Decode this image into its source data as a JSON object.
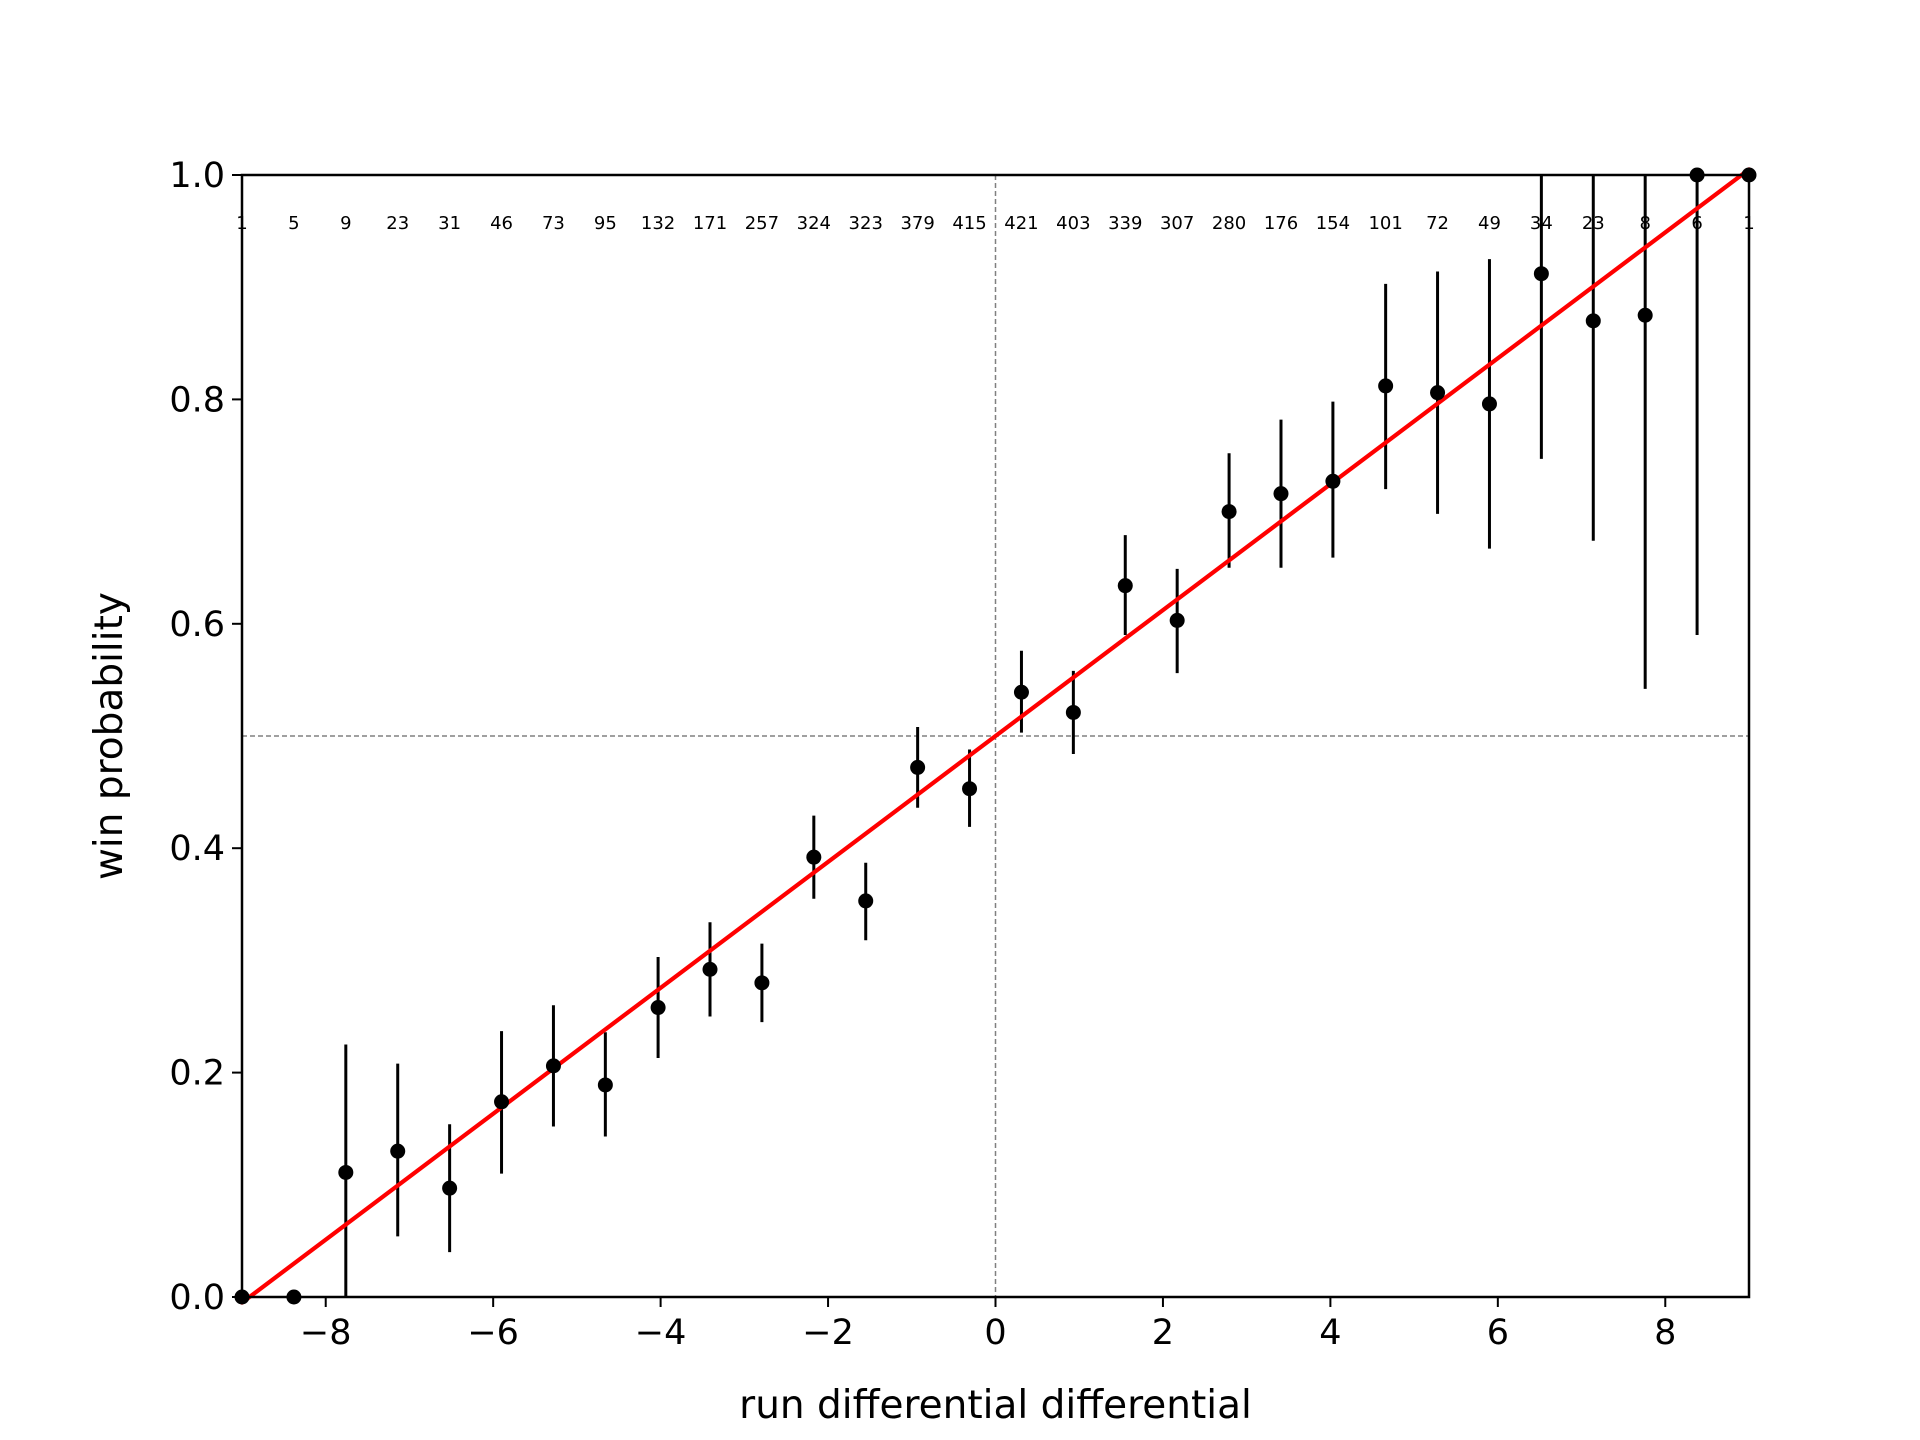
{
  "chart_data": {
    "type": "scatter",
    "xlabel": "run differential differential",
    "ylabel": "win probability",
    "xlim": [
      -9,
      9
    ],
    "ylim": [
      0,
      1
    ],
    "xticks": [
      -8,
      -6,
      -4,
      -2,
      0,
      2,
      4,
      6,
      8
    ],
    "xtick_labels": [
      "−8",
      "−6",
      "−4",
      "−2",
      "0",
      "2",
      "4",
      "6",
      "8"
    ],
    "yticks": [
      0,
      0.2,
      0.4,
      0.6,
      0.8,
      1.0
    ],
    "ytick_labels": [
      "0.0",
      "0.2",
      "0.4",
      "0.6",
      "0.8",
      "1.0"
    ],
    "grid": false,
    "reference_lines": {
      "x": 0,
      "y": 0.5,
      "style": "dashed",
      "color": "#808080"
    },
    "fit_line": {
      "x": [
        -9,
        9
      ],
      "y": [
        -0.005,
        1.005
      ],
      "color": "#ff0000"
    },
    "marker_color": "#000000",
    "series": [
      {
        "points": [
          {
            "x": -9.0,
            "y": 0.0,
            "ylo": 0.0,
            "yhi": 0.0,
            "n": "1"
          },
          {
            "x": -8.38,
            "y": 0.0,
            "ylo": 0.0,
            "yhi": 0.0,
            "n": "5"
          },
          {
            "x": -7.76,
            "y": 0.111,
            "ylo": 0.0,
            "yhi": 0.225,
            "n": "9"
          },
          {
            "x": -7.14,
            "y": 0.13,
            "ylo": 0.054,
            "yhi": 0.208,
            "n": "23"
          },
          {
            "x": -6.52,
            "y": 0.097,
            "ylo": 0.04,
            "yhi": 0.154,
            "n": "31"
          },
          {
            "x": -5.9,
            "y": 0.174,
            "ylo": 0.11,
            "yhi": 0.237,
            "n": "46"
          },
          {
            "x": -5.28,
            "y": 0.206,
            "ylo": 0.152,
            "yhi": 0.26,
            "n": "73"
          },
          {
            "x": -4.66,
            "y": 0.189,
            "ylo": 0.143,
            "yhi": 0.236,
            "n": "95"
          },
          {
            "x": -4.03,
            "y": 0.258,
            "ylo": 0.213,
            "yhi": 0.303,
            "n": "132"
          },
          {
            "x": -3.41,
            "y": 0.292,
            "ylo": 0.25,
            "yhi": 0.334,
            "n": "171"
          },
          {
            "x": -2.79,
            "y": 0.28,
            "ylo": 0.245,
            "yhi": 0.315,
            "n": "257"
          },
          {
            "x": -2.17,
            "y": 0.392,
            "ylo": 0.355,
            "yhi": 0.429,
            "n": "324"
          },
          {
            "x": -1.55,
            "y": 0.353,
            "ylo": 0.318,
            "yhi": 0.387,
            "n": "323"
          },
          {
            "x": -0.93,
            "y": 0.472,
            "ylo": 0.436,
            "yhi": 0.508,
            "n": "379"
          },
          {
            "x": -0.31,
            "y": 0.453,
            "ylo": 0.419,
            "yhi": 0.488,
            "n": "415"
          },
          {
            "x": 0.31,
            "y": 0.539,
            "ylo": 0.503,
            "yhi": 0.576,
            "n": "421"
          },
          {
            "x": 0.93,
            "y": 0.521,
            "ylo": 0.484,
            "yhi": 0.558,
            "n": "403"
          },
          {
            "x": 1.55,
            "y": 0.634,
            "ylo": 0.59,
            "yhi": 0.679,
            "n": "339"
          },
          {
            "x": 2.17,
            "y": 0.603,
            "ylo": 0.556,
            "yhi": 0.649,
            "n": "307"
          },
          {
            "x": 2.79,
            "y": 0.7,
            "ylo": 0.65,
            "yhi": 0.752,
            "n": "280"
          },
          {
            "x": 3.41,
            "y": 0.716,
            "ylo": 0.65,
            "yhi": 0.782,
            "n": "176"
          },
          {
            "x": 4.03,
            "y": 0.727,
            "ylo": 0.659,
            "yhi": 0.798,
            "n": "154"
          },
          {
            "x": 4.66,
            "y": 0.812,
            "ylo": 0.72,
            "yhi": 0.903,
            "n": "101"
          },
          {
            "x": 5.28,
            "y": 0.806,
            "ylo": 0.698,
            "yhi": 0.914,
            "n": "72"
          },
          {
            "x": 5.9,
            "y": 0.796,
            "ylo": 0.667,
            "yhi": 0.925,
            "n": "49"
          },
          {
            "x": 6.52,
            "y": 0.912,
            "ylo": 0.747,
            "yhi": 1.0,
            "n": "34"
          },
          {
            "x": 7.14,
            "y": 0.87,
            "ylo": 0.674,
            "yhi": 1.0,
            "n": "23"
          },
          {
            "x": 7.76,
            "y": 0.875,
            "ylo": 0.542,
            "yhi": 1.0,
            "n": "8"
          },
          {
            "x": 8.38,
            "y": 1.0,
            "ylo": 0.59,
            "yhi": 1.0,
            "n": "6"
          },
          {
            "x": 9.0,
            "y": 1.0,
            "ylo": 1.0,
            "yhi": 1.0,
            "n": "1"
          }
        ]
      }
    ]
  }
}
